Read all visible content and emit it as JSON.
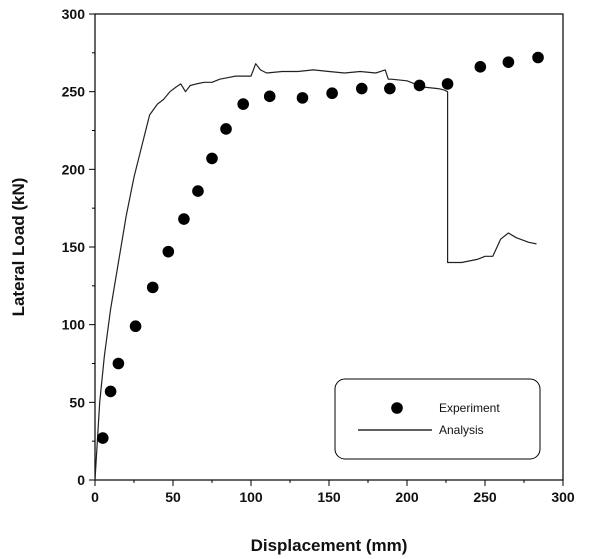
{
  "chart_data": {
    "type": "scatter",
    "xlabel": "Displacement (mm)",
    "ylabel": "Lateral Load (kN)",
    "xlim": [
      0,
      300
    ],
    "ylim": [
      0,
      300
    ],
    "xticks": [
      0,
      50,
      100,
      150,
      200,
      250,
      300
    ],
    "yticks": [
      0,
      50,
      100,
      150,
      200,
      250,
      300
    ],
    "minor_xticks": [
      25,
      75,
      125,
      175,
      225,
      275
    ],
    "minor_yticks": [
      25,
      75,
      125,
      175,
      225,
      275
    ],
    "grid": false,
    "legend_position": "bottom-right",
    "series": [
      {
        "name": "Experiment",
        "mode": "markers",
        "color": "#000000",
        "x": [
          5,
          10,
          15,
          26,
          37,
          47,
          57,
          66,
          75,
          84,
          95,
          112,
          133,
          152,
          171,
          189,
          208,
          226,
          247,
          265,
          284
        ],
        "y": [
          27,
          57,
          75,
          99,
          124,
          147,
          168,
          186,
          207,
          226,
          242,
          247,
          246,
          249,
          252,
          252,
          254,
          255,
          266,
          269,
          272
        ]
      },
      {
        "name": "Analysis",
        "mode": "line",
        "color": "#222222",
        "x": [
          0,
          3,
          6,
          10,
          15,
          20,
          25,
          30,
          35,
          40,
          44,
          48,
          52,
          55,
          58,
          61,
          65,
          70,
          75,
          80,
          85,
          90,
          95,
          100,
          103,
          106,
          110,
          120,
          130,
          140,
          150,
          160,
          170,
          180,
          186,
          188,
          190,
          200,
          210,
          220,
          224,
          226,
          226,
          235,
          245,
          250,
          255,
          260,
          265,
          270,
          278,
          283
        ],
        "y": [
          0,
          50,
          80,
          110,
          140,
          170,
          195,
          215,
          235,
          242,
          245,
          250,
          253,
          255,
          250,
          254,
          255,
          256,
          256,
          258,
          259,
          260,
          260,
          260,
          268,
          264,
          262,
          263,
          263,
          264,
          263,
          262,
          263,
          262,
          264,
          258,
          258,
          257,
          253,
          252,
          251,
          250,
          140,
          140,
          142,
          144,
          144,
          155,
          159,
          156,
          153,
          152
        ]
      }
    ]
  }
}
